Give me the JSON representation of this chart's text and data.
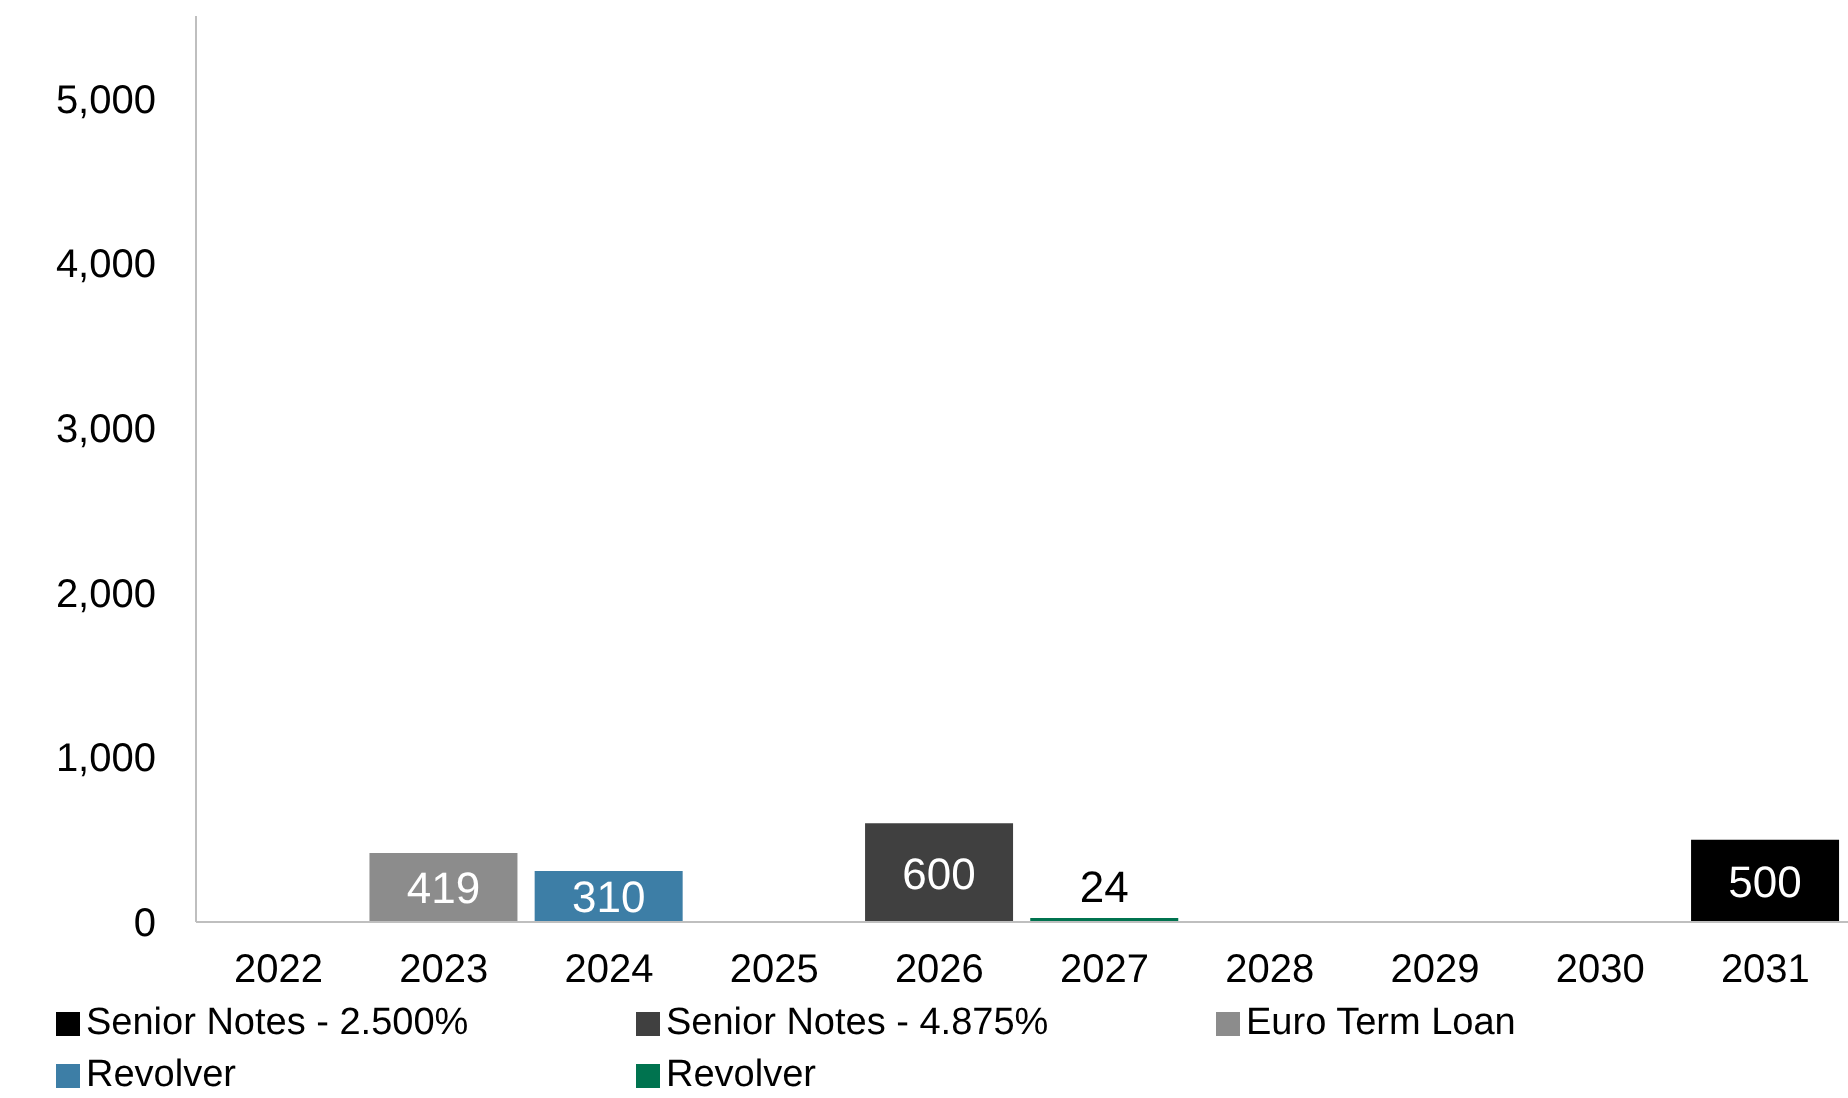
{
  "chart_data": {
    "type": "bar",
    "stacked": true,
    "categories": [
      "2022",
      "2023",
      "2024",
      "2025",
      "2026",
      "2027",
      "2028",
      "2029",
      "2030",
      "2031"
    ],
    "series": [
      {
        "name": "Senior Notes - 2.500%",
        "color": "#000000",
        "values": [
          null,
          null,
          null,
          null,
          null,
          null,
          null,
          null,
          null,
          500
        ]
      },
      {
        "name": "Senior Notes - 4.875%",
        "color": "#404040",
        "values": [
          null,
          null,
          null,
          null,
          600,
          null,
          null,
          null,
          null,
          null
        ]
      },
      {
        "name": "Euro Term Loan",
        "color": "#8c8c8c",
        "values": [
          null,
          419,
          null,
          null,
          null,
          null,
          null,
          null,
          null,
          null
        ]
      },
      {
        "name": "Revolver",
        "color": "#3d7ea6",
        "values": [
          null,
          null,
          310,
          null,
          null,
          null,
          null,
          null,
          null,
          null
        ]
      },
      {
        "name": "Revolver",
        "color": "#00734f",
        "values": [
          null,
          null,
          null,
          null,
          null,
          24,
          null,
          null,
          null,
          null
        ]
      }
    ],
    "ylim": [
      0,
      5500
    ],
    "yticks": [
      0,
      {
        "value": 1000,
        "label": "1,000"
      },
      {
        "value": 2000,
        "label": "2,000"
      },
      {
        "value": 3000,
        "label": "3,000"
      },
      {
        "value": 4000,
        "label": "4,000"
      },
      {
        "value": 5000,
        "label": "5,000"
      }
    ],
    "grid": false,
    "legend": "bottom",
    "data_labels": true
  }
}
